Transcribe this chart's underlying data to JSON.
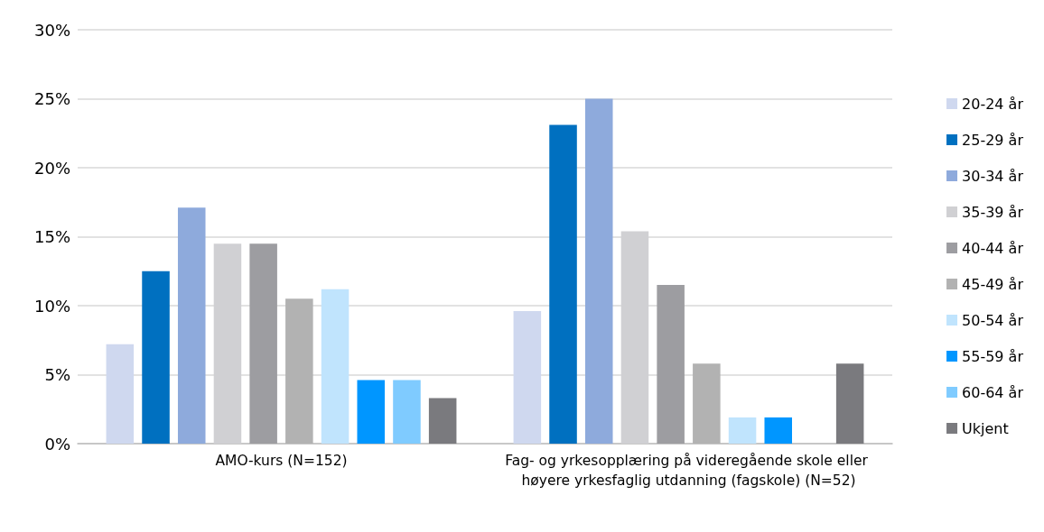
{
  "chart_data": {
    "type": "bar",
    "categories": [
      "AMO-kurs (N=152)",
      "Fag- og yrkesopplæring på videregående skole eller høyere yrkesfaglig utdanning (fagskole) (N=52)"
    ],
    "series": [
      {
        "name": "20-24 år",
        "color": "#cfd8ef",
        "values": [
          7.2,
          9.6
        ]
      },
      {
        "name": "25-29 år",
        "color": "#0070c0",
        "values": [
          12.5,
          23.1
        ]
      },
      {
        "name": "30-34 år",
        "color": "#8eaadc",
        "values": [
          17.1,
          25.0
        ]
      },
      {
        "name": "35-39 år",
        "color": "#d0d0d3",
        "values": [
          14.5,
          15.4
        ]
      },
      {
        "name": "40-44 år",
        "color": "#9d9da1",
        "values": [
          14.5,
          11.5
        ]
      },
      {
        "name": "45-49 år",
        "color": "#b2b2b2",
        "values": [
          10.5,
          5.8
        ]
      },
      {
        "name": "50-54 år",
        "color": "#c0e4fd",
        "values": [
          11.2,
          1.9
        ]
      },
      {
        "name": "55-59 år",
        "color": "#0096ff",
        "values": [
          4.6,
          1.9
        ]
      },
      {
        "name": "60-64 år",
        "color": "#7fcbff",
        "values": [
          4.6,
          0
        ]
      },
      {
        "name": "Ukjent",
        "color": "#7a7a7e",
        "values": [
          3.3,
          5.8
        ]
      }
    ],
    "ylim": [
      0,
      30
    ],
    "yticks": [
      {
        "value": 0,
        "label": "0%"
      },
      {
        "value": 5,
        "label": "5%"
      },
      {
        "value": 10,
        "label": "10%"
      },
      {
        "value": 15,
        "label": "15%"
      },
      {
        "value": 20,
        "label": "20%"
      },
      {
        "value": 25,
        "label": "25%"
      },
      {
        "value": 30,
        "label": "30%"
      }
    ],
    "grid": "y",
    "legend": "right"
  }
}
